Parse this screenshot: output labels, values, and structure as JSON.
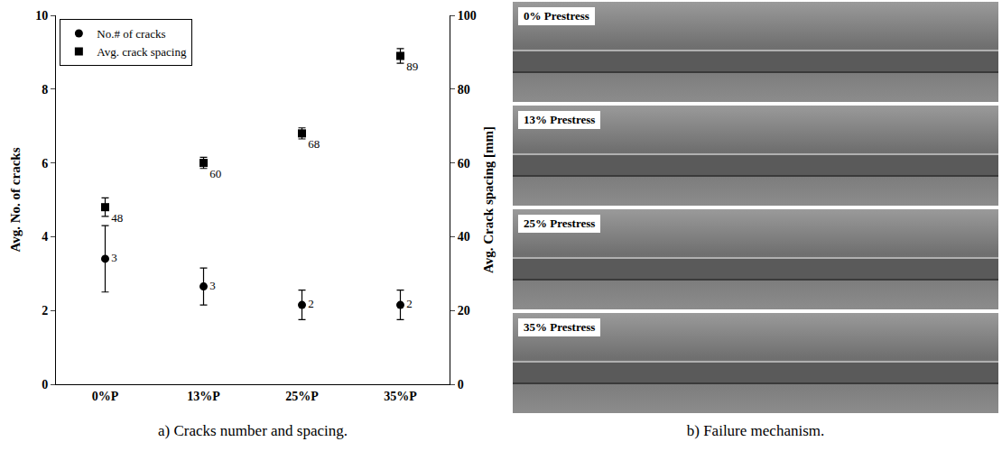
{
  "chart_data": {
    "type": "scatter",
    "categories": [
      "0%P",
      "13%P",
      "25%P",
      "35%P"
    ],
    "ylabel": "Avg. No. of cracks",
    "y2label": "Avg. Crack spacing [mm]",
    "ylim": [
      0,
      10
    ],
    "yticks": [
      0,
      2,
      4,
      6,
      8,
      10
    ],
    "y2lim": [
      0,
      100
    ],
    "y2ticks": [
      0,
      20,
      40,
      60,
      80,
      100
    ],
    "grid": false,
    "legend": "upper left",
    "data_labels": true,
    "caption": "a) Cracks number and spacing.",
    "series": [
      {
        "name": "No.# of cracks",
        "color": "#000000",
        "marker": "circle",
        "axis": "y",
        "values": [
          3.4,
          2.65,
          2.15,
          2.15
        ],
        "error": [
          0.9,
          0.5,
          0.4,
          0.4
        ],
        "value_labels": [
          "3",
          "3",
          "2",
          "2"
        ]
      },
      {
        "name": "Avg. crack spacing",
        "color": "#000000",
        "marker": "square",
        "axis": "y2",
        "values": [
          48,
          60,
          68,
          89
        ],
        "error": [
          2.5,
          1.5,
          1.5,
          2
        ]
      }
    ]
  },
  "photo_panel": {
    "caption": "b) Failure mechanism.",
    "photos": [
      {
        "label": "0% Prestress"
      },
      {
        "label": "13% Prestress"
      },
      {
        "label": "25% Prestress"
      },
      {
        "label": "35% Prestress"
      }
    ]
  }
}
